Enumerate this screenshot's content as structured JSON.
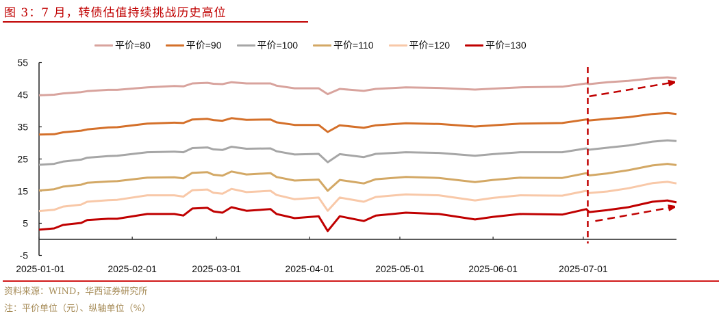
{
  "figure": {
    "title": "图 3：7 月，转债估值持续挑战历史高位",
    "source": "资料来源：WIND，华西证券研究所",
    "note": "注：平价单位（元）、纵轴单位（%）"
  },
  "colors": {
    "title_red": "#c00000",
    "rule_red": "#d01818",
    "annotation_red": "#c00000",
    "note_text": "#a58a55"
  },
  "chart_data": {
    "type": "line",
    "title": "7 月，转债估值持续挑战历史高位",
    "xlabel": "",
    "ylabel": "%",
    "ylim": [
      -5,
      55
    ],
    "yticks": [
      -5,
      5,
      15,
      25,
      35,
      45,
      55
    ],
    "xlim_days": [
      0,
      212
    ],
    "xticks": [
      {
        "label": "2025-01-01",
        "day": 0
      },
      {
        "label": "2025-02-01",
        "day": 31
      },
      {
        "label": "2025-03-01",
        "day": 59
      },
      {
        "label": "2025-04-01",
        "day": 90
      },
      {
        "label": "2025-05-01",
        "day": 120
      },
      {
        "label": "2025-06-01",
        "day": 151
      },
      {
        "label": "2025-07-01",
        "day": 181
      }
    ],
    "grid": false,
    "legend_position": "top",
    "x_days": [
      0,
      5,
      8,
      14,
      16,
      23,
      26,
      36,
      45,
      48,
      51,
      56,
      58,
      61,
      64,
      69,
      77,
      79,
      85,
      93,
      96,
      100,
      108,
      112,
      122,
      133,
      145,
      151,
      160,
      174,
      182,
      183,
      189,
      196,
      204,
      209,
      212
    ],
    "series": [
      {
        "name": "平价=80",
        "color": "#d8a39d",
        "values": [
          44.8,
          45.0,
          45.4,
          45.8,
          46.1,
          46.5,
          46.5,
          47.3,
          47.7,
          47.6,
          48.5,
          48.7,
          48.4,
          48.3,
          48.9,
          48.5,
          48.5,
          47.8,
          47.0,
          47.0,
          45.2,
          46.8,
          46.2,
          46.8,
          47.3,
          47.1,
          46.6,
          46.9,
          47.3,
          47.5,
          48.5,
          48.3,
          48.9,
          49.3,
          50.1,
          50.4,
          50.1
        ]
      },
      {
        "name": "平价=90",
        "color": "#d4702a",
        "values": [
          32.6,
          32.7,
          33.3,
          33.8,
          34.2,
          34.8,
          34.9,
          36.0,
          36.3,
          36.2,
          37.3,
          37.5,
          37.1,
          36.9,
          37.7,
          37.2,
          37.3,
          36.4,
          35.6,
          35.6,
          33.4,
          35.5,
          34.7,
          35.5,
          36.1,
          35.9,
          35.1,
          35.5,
          36.0,
          36.2,
          37.3,
          37.0,
          37.5,
          38.0,
          39.0,
          39.3,
          39.0
        ]
      },
      {
        "name": "平价=100",
        "color": "#a6a6a6",
        "values": [
          23.2,
          23.5,
          24.2,
          24.8,
          25.4,
          25.9,
          26.0,
          27.1,
          27.3,
          27.1,
          28.4,
          28.6,
          28.0,
          27.8,
          28.8,
          28.2,
          28.3,
          27.4,
          26.4,
          26.6,
          24.0,
          26.5,
          25.6,
          26.6,
          27.1,
          26.9,
          26.0,
          26.5,
          27.1,
          27.1,
          28.3,
          27.9,
          28.5,
          29.2,
          30.4,
          30.8,
          30.6
        ]
      },
      {
        "name": "平价=110",
        "color": "#d3a865",
        "values": [
          15.2,
          15.6,
          16.4,
          17.0,
          17.6,
          18.0,
          18.1,
          19.2,
          19.3,
          19.0,
          20.7,
          20.9,
          20.1,
          19.8,
          21.1,
          20.2,
          20.6,
          19.4,
          18.3,
          18.6,
          15.1,
          18.5,
          17.4,
          18.7,
          19.4,
          19.1,
          17.8,
          18.5,
          19.2,
          19.1,
          20.6,
          19.9,
          20.5,
          21.5,
          23.0,
          23.5,
          23.1
        ]
      },
      {
        "name": "平价=120",
        "color": "#f8c8a8",
        "values": [
          8.8,
          9.2,
          10.2,
          10.8,
          11.7,
          12.2,
          12.3,
          13.7,
          13.7,
          13.3,
          15.3,
          15.5,
          14.5,
          14.2,
          15.7,
          14.7,
          15.1,
          13.8,
          12.5,
          13.0,
          8.9,
          13.0,
          11.7,
          13.2,
          14.0,
          13.7,
          12.1,
          12.9,
          13.7,
          13.6,
          15.1,
          14.4,
          14.9,
          15.9,
          17.5,
          17.9,
          17.4
        ]
      },
      {
        "name": "平价=130",
        "color": "#c00000",
        "values": [
          3.0,
          3.4,
          4.5,
          5.1,
          6.0,
          6.4,
          6.4,
          7.9,
          7.9,
          7.4,
          9.6,
          9.8,
          8.7,
          8.3,
          10.0,
          8.9,
          9.4,
          7.9,
          6.6,
          7.2,
          2.6,
          7.2,
          5.7,
          7.4,
          8.3,
          7.9,
          6.2,
          7.0,
          7.9,
          7.7,
          9.4,
          8.5,
          9.1,
          10.0,
          11.7,
          12.1,
          11.5
        ]
      }
    ],
    "annotations": [
      {
        "type": "vline-dashed",
        "day": 182.5,
        "color": "#c00000"
      },
      {
        "type": "arrow-dashed",
        "from": {
          "day": 183,
          "value": 44.5
        },
        "to": {
          "day": 212,
          "value": 48.8
        },
        "color": "#c00000"
      },
      {
        "type": "arrow-dashed",
        "from": {
          "day": 185,
          "value": 5.7
        },
        "to": {
          "day": 212,
          "value": 10.0
        },
        "color": "#c00000"
      }
    ]
  }
}
